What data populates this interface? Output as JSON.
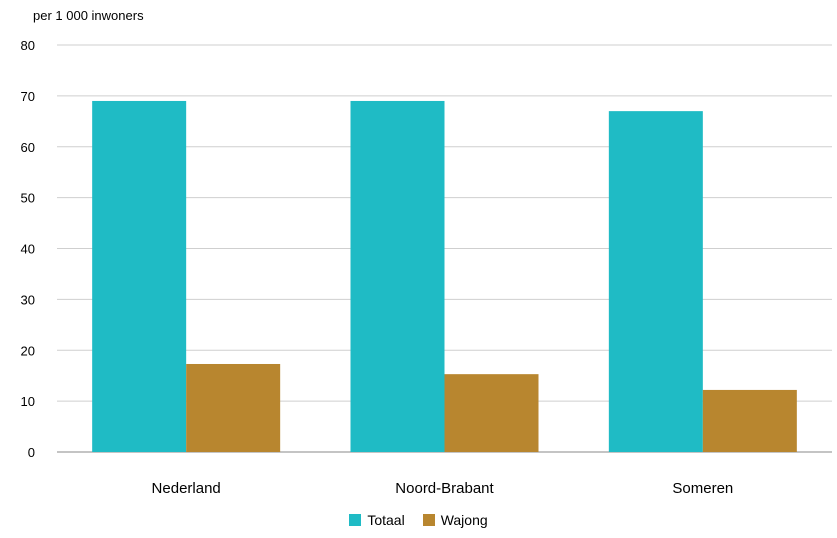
{
  "chart_data": {
    "type": "bar",
    "ylabel": "per 1 000 inwoners",
    "categories": [
      "Nederland",
      "Noord-Brabant",
      "Someren"
    ],
    "series": [
      {
        "name": "Totaal",
        "color": "#1FBBC5",
        "values": [
          69,
          69,
          67
        ]
      },
      {
        "name": "Wajong",
        "color": "#B8862F",
        "values": [
          17.3,
          15.3,
          12.2
        ]
      }
    ],
    "ylim": [
      0,
      80
    ],
    "yticks": [
      0,
      10,
      20,
      30,
      40,
      50,
      60,
      70,
      80
    ],
    "grid": true,
    "legend": "bottom"
  }
}
